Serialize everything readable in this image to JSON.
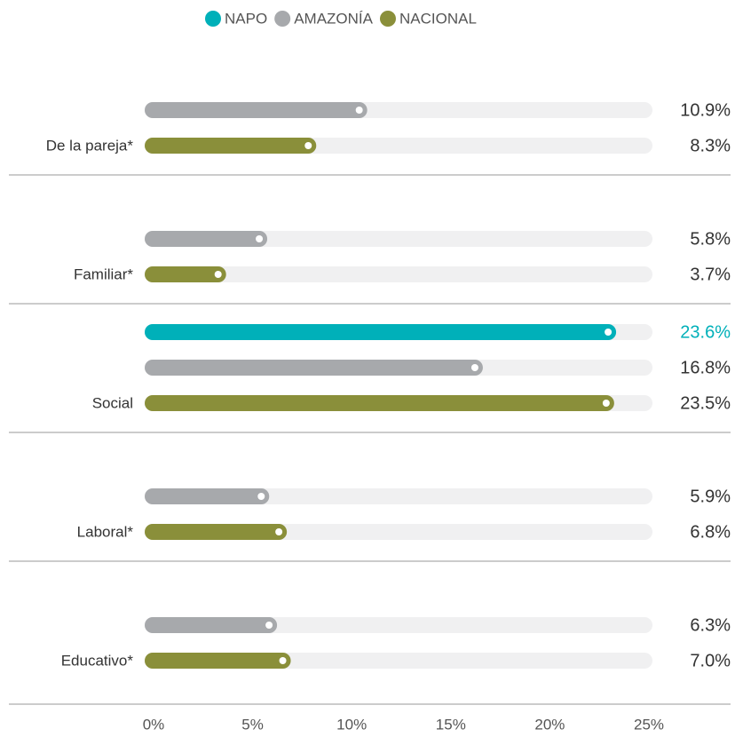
{
  "chart_data": {
    "type": "bar",
    "categories": [
      "De la pareja*",
      "Familiar*",
      "Social",
      "Laboral*",
      "Educativo*"
    ],
    "series": [
      {
        "name": "NAPO",
        "color": "#00b0b9",
        "values": [
          null,
          null,
          23.6,
          null,
          null
        ],
        "value_labels": [
          null,
          null,
          "23.6%",
          null,
          null
        ]
      },
      {
        "name": "AMAZONÍA",
        "color": "#a7a9ac",
        "values": [
          10.9,
          5.8,
          16.8,
          5.9,
          6.3
        ],
        "value_labels": [
          "10.9%",
          "5.8%",
          "16.8%",
          "5.9%",
          "6.3%"
        ]
      },
      {
        "name": "NACIONAL",
        "color": "#8a8f3a",
        "values": [
          8.3,
          3.7,
          23.5,
          6.8,
          7.0
        ],
        "value_labels": [
          "8.3%",
          "3.7%",
          "23.5%",
          "6.8%",
          "7.0%"
        ]
      }
    ],
    "xlim": [
      0,
      25
    ],
    "xticks": [
      {
        "value": 0,
        "label": "0%"
      },
      {
        "value": 5,
        "label": "5%"
      },
      {
        "value": 10,
        "label": "10%"
      },
      {
        "value": 15,
        "label": "15%"
      },
      {
        "value": 20,
        "label": "20%"
      },
      {
        "value": 25,
        "label": "25%"
      }
    ]
  }
}
